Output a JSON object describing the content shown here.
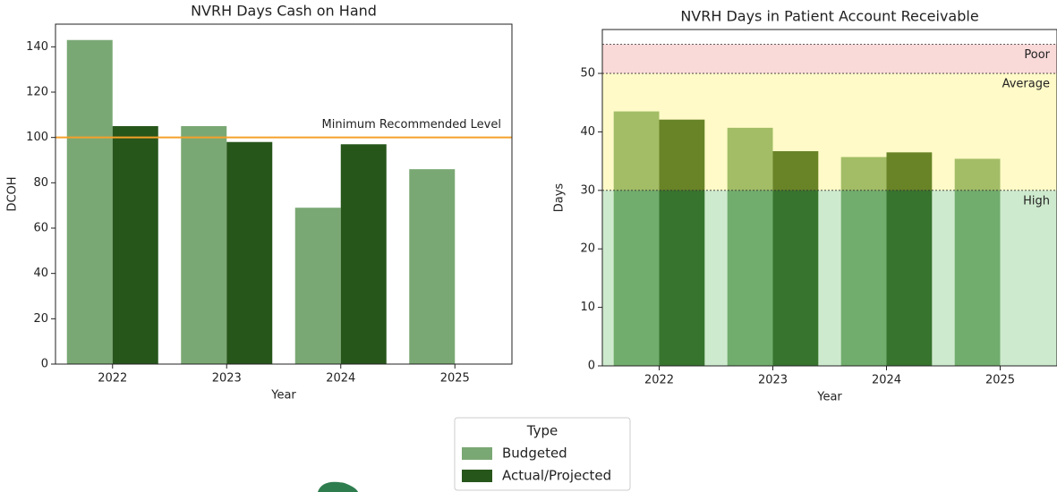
{
  "chart_data": [
    {
      "type": "bar",
      "title": "NVRH Days Cash on Hand",
      "x_label": "Year",
      "y_label": "DCOH",
      "categories": [
        "2022",
        "2023",
        "2024",
        "2025"
      ],
      "series": [
        {
          "name": "Budgeted",
          "color": "#7aa874",
          "values": [
            143,
            105,
            69,
            86
          ]
        },
        {
          "name": "Actual/Projected",
          "color": "#27561a",
          "values": [
            105,
            98,
            97,
            null
          ]
        }
      ],
      "ylim": [
        0,
        150
      ],
      "yticks": [
        0,
        20,
        40,
        60,
        80,
        100,
        120,
        140
      ],
      "reference_lines": [
        {
          "value": 100,
          "label": "Minimum Recommended Level",
          "color": "#f5a02a"
        }
      ]
    },
    {
      "type": "bar",
      "title": "NVRH Days in Patient Account Receivable",
      "x_label": "Year",
      "y_label": "Days",
      "categories": [
        "2022",
        "2023",
        "2024",
        "2025"
      ],
      "series": [
        {
          "name": "Budgeted",
          "color": "#7aa874",
          "values": [
            43.5,
            40.7,
            35.7,
            35.4
          ]
        },
        {
          "name": "Actual/Projected",
          "color": "#27561a",
          "values": [
            42.1,
            36.7,
            36.5,
            null
          ]
        }
      ],
      "ylim": [
        0,
        57.5
      ],
      "yticks": [
        0,
        10,
        20,
        30,
        40,
        50
      ],
      "bands": [
        {
          "label": "Poor",
          "range": [
            50,
            55
          ],
          "color": "#f08080"
        },
        {
          "label": "Average",
          "range": [
            30,
            50
          ],
          "color": "#ffee44"
        },
        {
          "label": "High",
          "range": [
            0,
            30
          ],
          "color": "#5cb85c"
        }
      ]
    }
  ],
  "legend_title": "Type"
}
